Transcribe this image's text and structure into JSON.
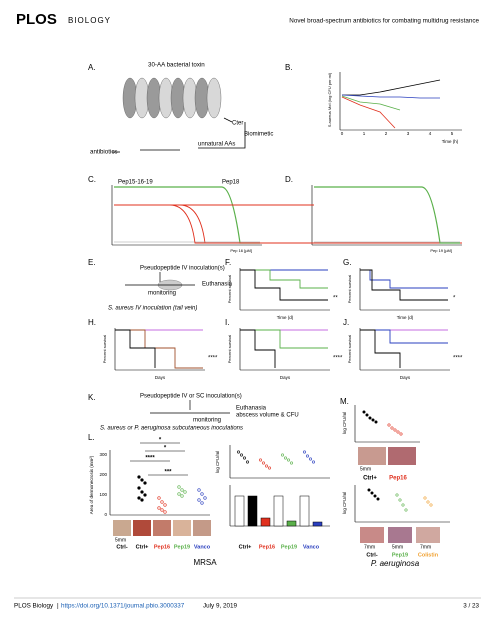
{
  "header": {
    "logo": "PLOS",
    "journal": "BIOLOGY",
    "running_title": "Novel broad-spectrum antibiotics for combating multidrug resistance"
  },
  "figure": {
    "panel_letters": [
      "A.",
      "B.",
      "C.",
      "D.",
      "E.",
      "F.",
      "G.",
      "H.",
      "I.",
      "J.",
      "K.",
      "L.",
      "M."
    ],
    "a": {
      "toxin": "30-AA bacterial toxin",
      "cter": "Cter",
      "biomimetic": "Biomimetic",
      "unnatural": "unnatural AAs",
      "antibiotics": "antibiotics",
      "pep15": "Pep15-16-19",
      "pep18": "Pep18"
    },
    "b": {
      "y_label": "S.aureus MoI (log CFU per ml)",
      "x_label": "Time (h)",
      "xticks": [
        "0",
        "1",
        "2",
        "3",
        "4",
        "5"
      ]
    },
    "c": {
      "x_label": "Pep 16 [µM]"
    },
    "d": {
      "x_label": "Pep 19 [µM]"
    },
    "e": {
      "inoculation": "Pseudopeptide IV inoculation(s)",
      "euthanasia": "Euthanasia",
      "monitoring": "monitoring",
      "strain": "S. aureus IV inoculation (tail vein)"
    },
    "survival": {
      "y_label": "Percent survival",
      "days": "Days",
      "time": "Time (d)"
    },
    "stars": {
      "f": "**",
      "g": "*",
      "h": "****",
      "i": "****",
      "j": "****"
    },
    "k": {
      "inoculation": "Pseudopeptide IV or SC inoculation(s)",
      "euthanasia": "Euthanasia",
      "measure": "abscess volume & CFU",
      "monitoring": "monitoring",
      "strain": "S. aureus or P. aeruginosa subcutaneous inoculations"
    },
    "l": {
      "groups": [
        "Ctrl-",
        "Ctrl+",
        "Pep16",
        "Pep19",
        "Vanco"
      ],
      "scale": "5mm",
      "y_label": "Area of dermonecrosis (mm²)",
      "yticks": [
        "0",
        "100",
        "200",
        "300"
      ],
      "stars": [
        "****",
        "***",
        "*",
        "*"
      ],
      "strain": "MRSA",
      "cfu_label": "log CFU/ml"
    },
    "m": {
      "top_groups": [
        "Ctrl+",
        "Pep16"
      ],
      "top_scale": "5mm",
      "bottom_groups": [
        "Ctrl-",
        "Pep19",
        "Colistin"
      ],
      "bottom_scales": [
        "7mm",
        "5mm",
        "7mm"
      ],
      "y_label": "log CFU/ml",
      "strain": "P. aeruginosa"
    }
  },
  "footer": {
    "journal": "PLOS Biology",
    "separator": "|",
    "doi": "https://doi.org/10.1371/journal.pbio.3000337",
    "date": "July 9, 2019",
    "page": "3 / 23"
  }
}
